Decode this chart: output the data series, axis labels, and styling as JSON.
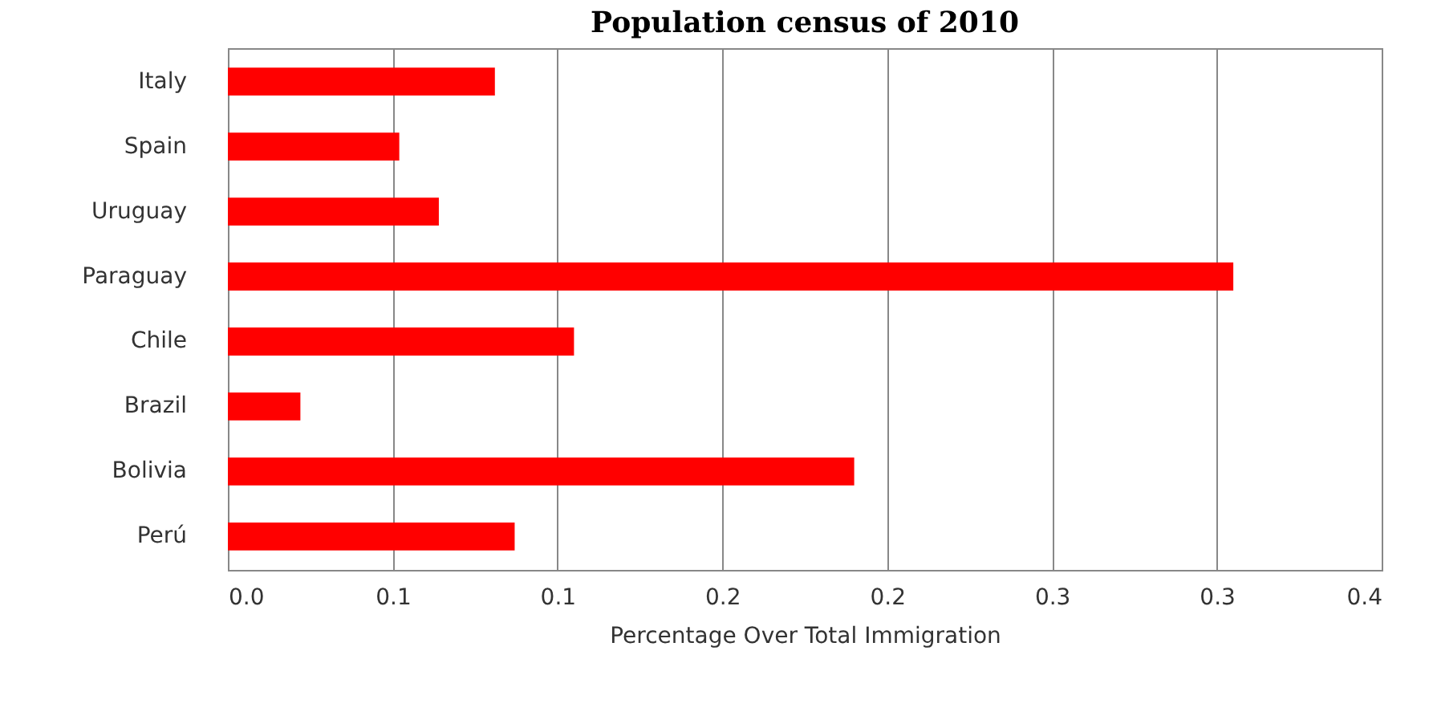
{
  "chart_data": {
    "type": "bar",
    "orientation": "horizontal",
    "title": "Population census of 2010",
    "xlabel": "Percentage Over Total Immigration",
    "categories": [
      "Italy",
      "Spain",
      "Uruguay",
      "Paraguay",
      "Chile",
      "Brazil",
      "Bolivia",
      "Perú"
    ],
    "values": [
      0.081,
      0.052,
      0.064,
      0.305,
      0.105,
      0.022,
      0.19,
      0.087
    ],
    "color": "#ff0000",
    "xlim": [
      0,
      0.35
    ],
    "xticks": [
      {
        "value": 0,
        "label": "0.0"
      },
      {
        "value": 0.05,
        "label": "0.1"
      },
      {
        "value": 0.1,
        "label": "0.1"
      },
      {
        "value": 0.15,
        "label": "0.2"
      },
      {
        "value": 0.2,
        "label": "0.2"
      },
      {
        "value": 0.25,
        "label": "0.3"
      },
      {
        "value": 0.3,
        "label": "0.3"
      },
      {
        "value": 0.35,
        "label": "0.4"
      }
    ],
    "grid": "x"
  }
}
